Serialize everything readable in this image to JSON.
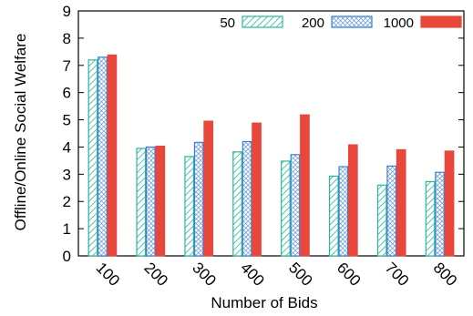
{
  "chart_data": {
    "type": "bar",
    "title": "",
    "xlabel": "Number of Bids",
    "ylabel": "Offline/Online Social Welfare",
    "ylim": [
      0,
      9
    ],
    "yticks": [
      "0",
      "1",
      "2",
      "3",
      "4",
      "5",
      "6",
      "7",
      "8",
      "9"
    ],
    "categories": [
      "100",
      "200",
      "300",
      "400",
      "500",
      "600",
      "700",
      "800"
    ],
    "legend_position": "top-right",
    "grid": false,
    "series": [
      {
        "name": "50",
        "color": "#2bb59a",
        "pattern": "diagonal-hatch",
        "values": [
          7.2,
          3.95,
          3.65,
          3.82,
          3.48,
          2.93,
          2.6,
          2.73
        ]
      },
      {
        "name": "200",
        "color": "#3b7fd1",
        "pattern": "crosshatch",
        "values": [
          7.3,
          4.0,
          4.17,
          4.2,
          3.72,
          3.28,
          3.3,
          3.07
        ]
      },
      {
        "name": "1000",
        "color": "#e8473c",
        "pattern": "solid",
        "values": [
          7.38,
          4.03,
          4.95,
          4.88,
          5.18,
          4.08,
          3.9,
          3.85
        ]
      }
    ]
  }
}
